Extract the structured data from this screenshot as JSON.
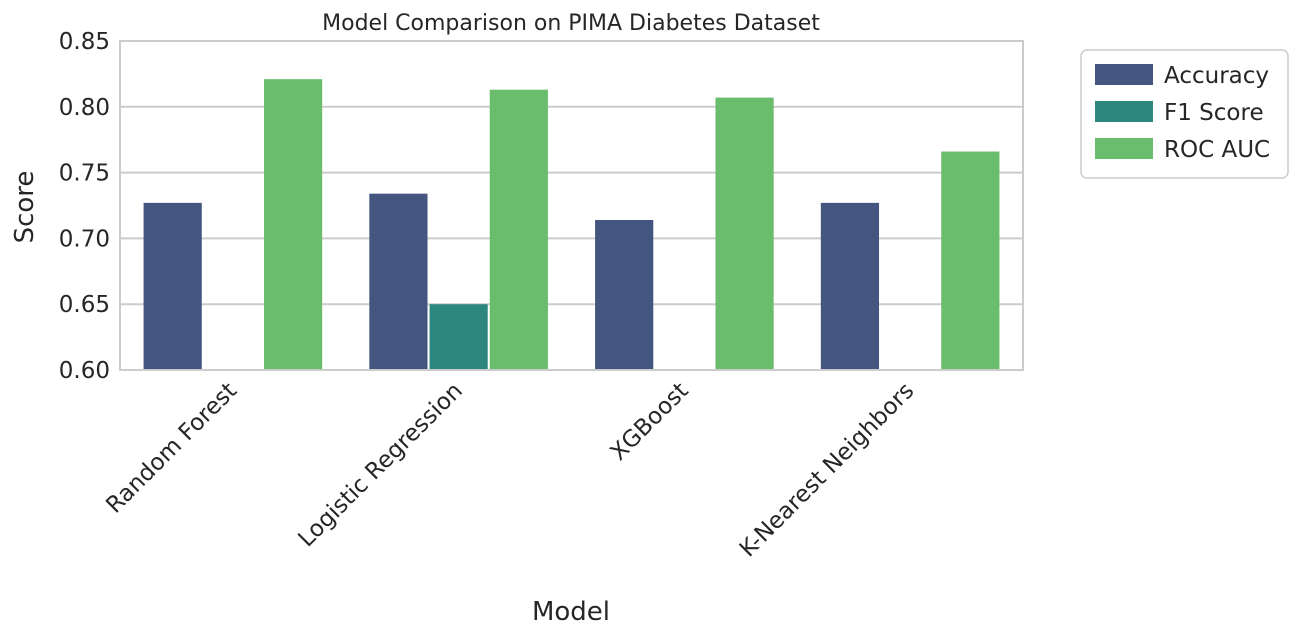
{
  "chart_data": {
    "type": "bar",
    "title": "Model Comparison on PIMA Diabetes Dataset",
    "xlabel": "Model",
    "ylabel": "Score",
    "ylim": [
      0.6,
      0.85
    ],
    "yticks": [
      "0.60",
      "0.65",
      "0.70",
      "0.75",
      "0.80",
      "0.85"
    ],
    "grid": true,
    "legend_position": "outside-right",
    "categories": [
      "Random Forest",
      "Logistic Regression",
      "XGBoost",
      "K-Nearest Neighbors"
    ],
    "series": [
      {
        "name": "Accuracy",
        "color": "#44557f",
        "values": [
          0.727,
          0.734,
          0.714,
          0.727
        ]
      },
      {
        "name": "F1 Score",
        "color": "#2e877f",
        "values": [
          0.6,
          0.65,
          0.6,
          0.6
        ]
      },
      {
        "name": "ROC AUC",
        "color": "#6abd6c",
        "values": [
          0.821,
          0.813,
          0.807,
          0.766
        ]
      }
    ]
  }
}
